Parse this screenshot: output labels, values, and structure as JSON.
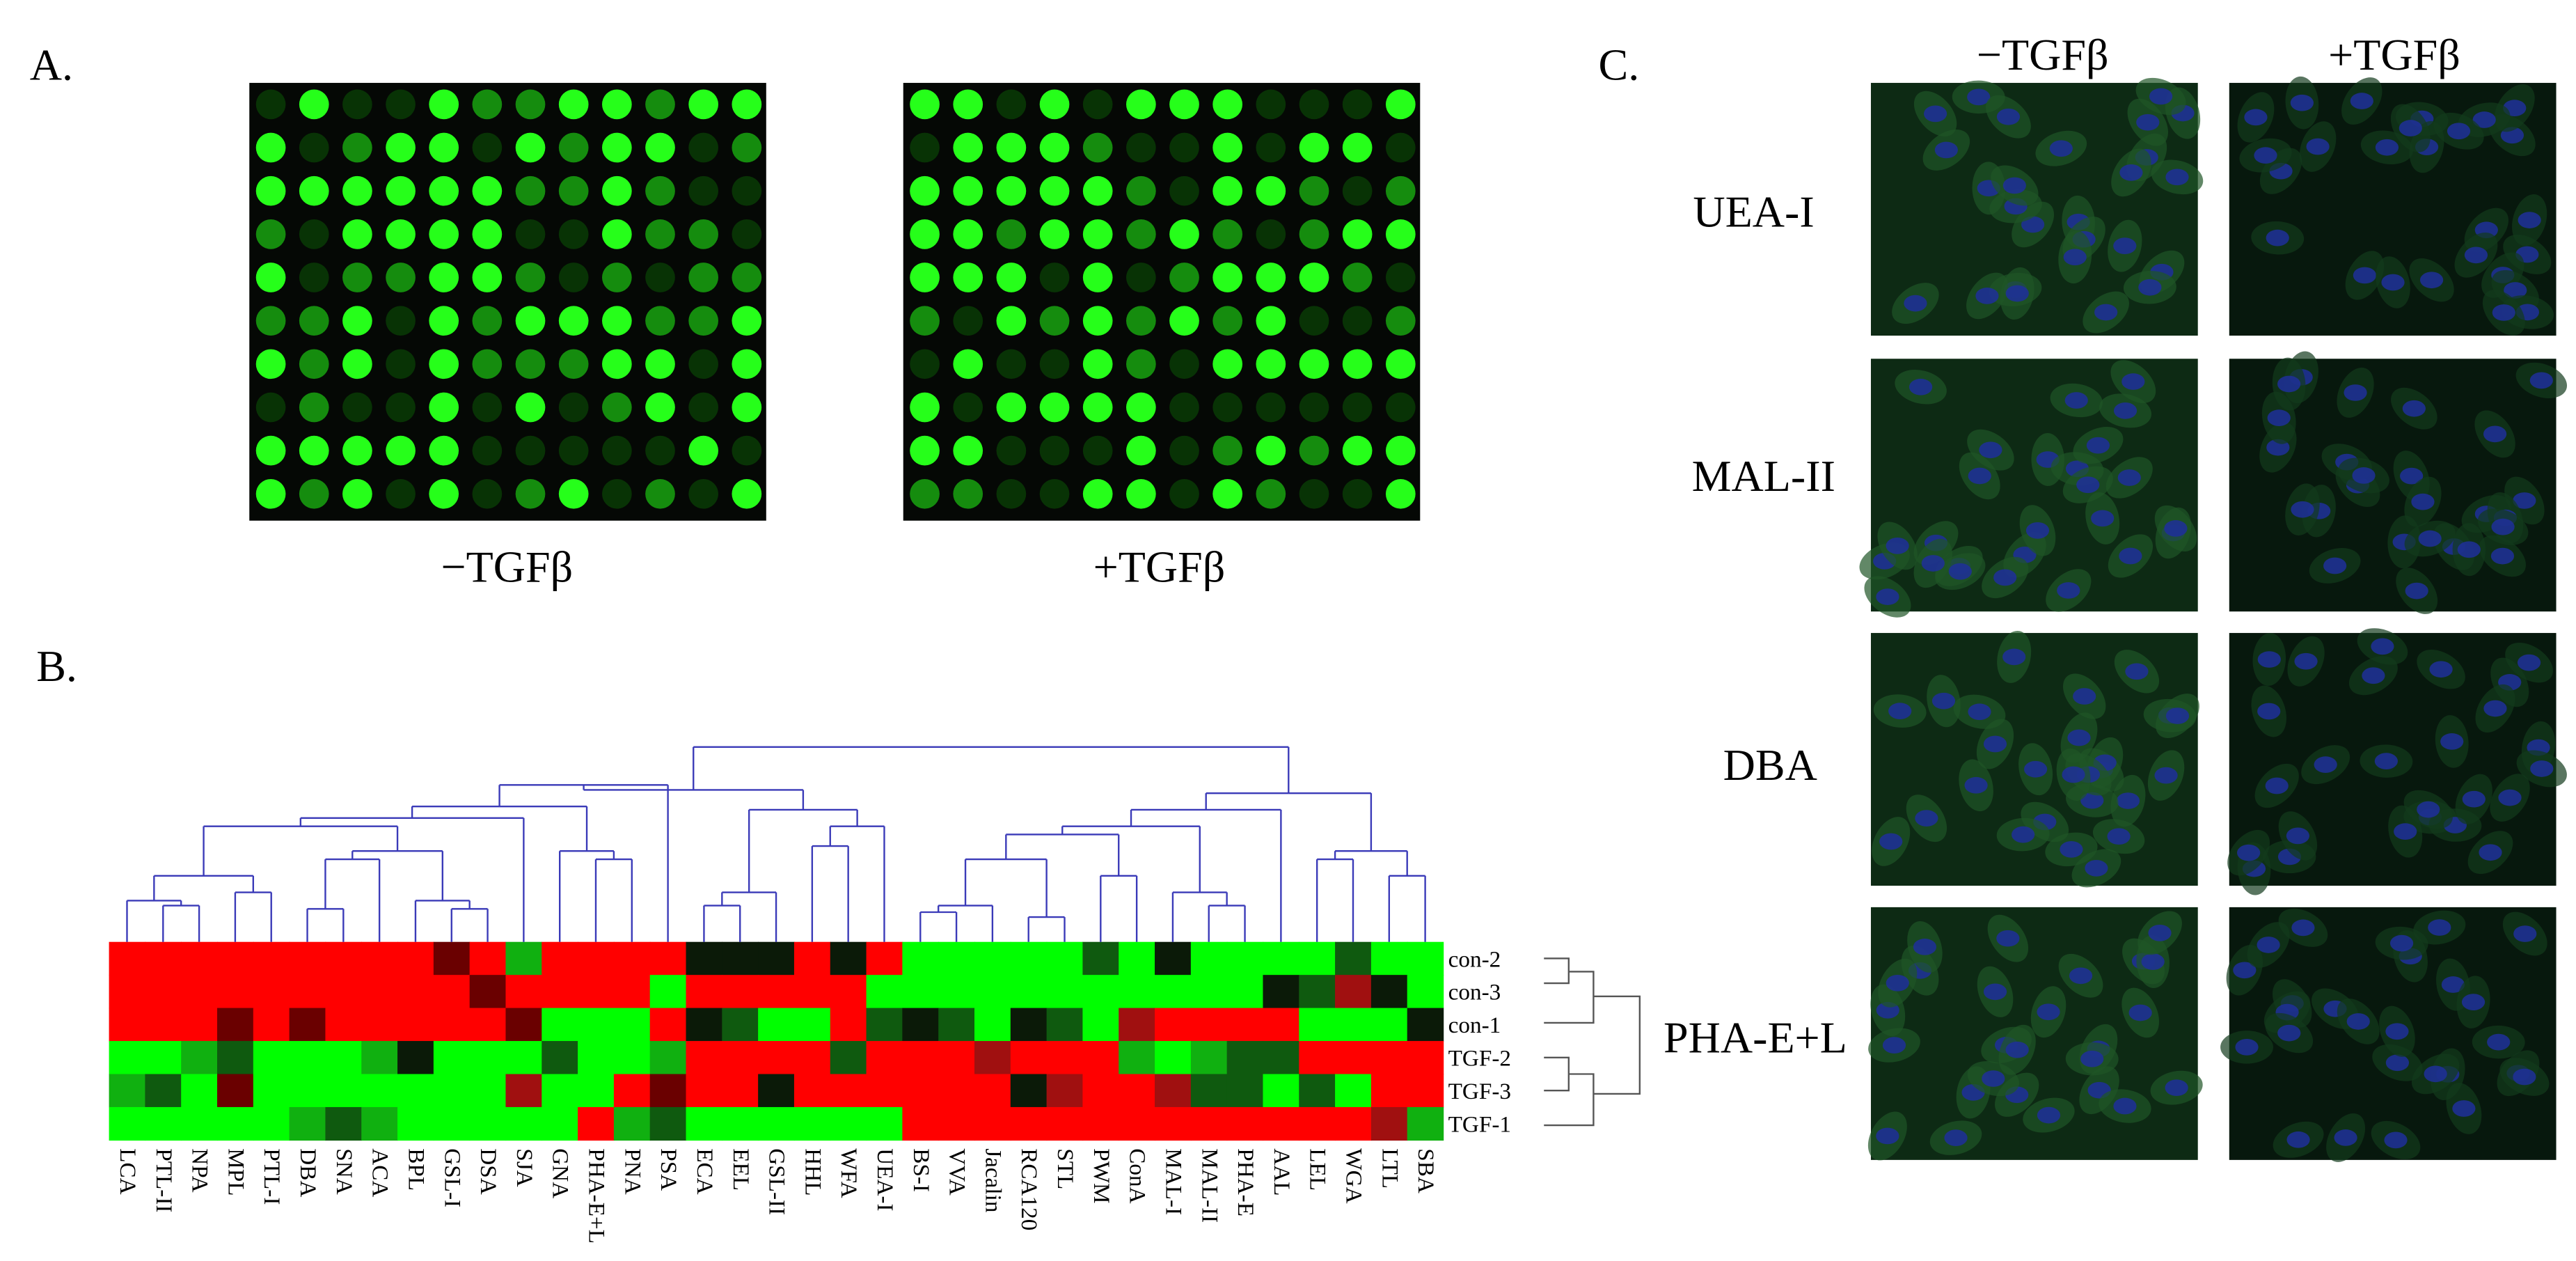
{
  "panel_a": {
    "label": "A.",
    "captions": [
      "−TGFβ",
      "+TGFβ"
    ]
  },
  "panel_b": {
    "label": "B.",
    "heatmap": {
      "columns": [
        "LCA",
        "PTL-II",
        "NPA",
        "MPL",
        "PTL-I",
        "DBA",
        "SNA",
        "ACA",
        "BPL",
        "GSL-I",
        "DSA",
        "SJA",
        "GNA",
        "PHA-E+L",
        "PNA",
        "PSA",
        "ECA",
        "EEL",
        "GSL-II",
        "HHL",
        "WFA",
        "UEA-I",
        "BS-I",
        "VVA",
        "Jacalin",
        "RCA120",
        "STL",
        "PWM",
        "ConA",
        "MAL-I",
        "MAL-II",
        "PHA-E",
        "AAL",
        "LEL",
        "WGA",
        "LTL",
        "SBA"
      ],
      "rows": [
        "con-2",
        "con-3",
        "con-1",
        "TGF-2",
        "TGF-3",
        "TGF-1"
      ],
      "colors": [
        [
          "#ff0000",
          "#ff0000",
          "#ff0000",
          "#ff0000",
          "#ff0000",
          "#ff0000",
          "#ff0000",
          "#ff0000",
          "#ff0000",
          "#6a0000",
          "#ff0000",
          "#10b010",
          "#ff0000",
          "#ff0000",
          "#ff0000",
          "#ff0000",
          "#0b1a08",
          "#0b1a08",
          "#0b1a08",
          "#ff0000",
          "#0b1a08",
          "#ff0000",
          "#00ff00",
          "#00ff00",
          "#00ff00",
          "#00ff00",
          "#00ff00",
          "#0f5a0f",
          "#00ff00",
          "#0b1a08",
          "#00ff00",
          "#00ff00",
          "#00ff00",
          "#00ff00",
          "#0f5a0f",
          "#00ff00",
          "#00ff00"
        ],
        [
          "#ff0000",
          "#ff0000",
          "#ff0000",
          "#ff0000",
          "#ff0000",
          "#ff0000",
          "#ff0000",
          "#ff0000",
          "#ff0000",
          "#ff0000",
          "#6a0000",
          "#ff0000",
          "#ff0000",
          "#ff0000",
          "#ff0000",
          "#00ff00",
          "#ff0000",
          "#ff0000",
          "#ff0000",
          "#ff0000",
          "#ff0000",
          "#00ff00",
          "#00ff00",
          "#00ff00",
          "#00ff00",
          "#00ff00",
          "#00ff00",
          "#00ff00",
          "#00ff00",
          "#00ff00",
          "#00ff00",
          "#00ff00",
          "#0b1a08",
          "#0f5a0f",
          "#a01010",
          "#0b1a08",
          "#00ff00"
        ],
        [
          "#ff0000",
          "#ff0000",
          "#ff0000",
          "#6a0000",
          "#ff0000",
          "#6a0000",
          "#ff0000",
          "#ff0000",
          "#ff0000",
          "#ff0000",
          "#ff0000",
          "#6a0000",
          "#00ff00",
          "#00ff00",
          "#00ff00",
          "#ff0000",
          "#0b1a08",
          "#0f5a0f",
          "#00ff00",
          "#00ff00",
          "#ff0000",
          "#0f5a0f",
          "#0b1a08",
          "#0f5a0f",
          "#00ff00",
          "#0b1a08",
          "#0f5a0f",
          "#00ff00",
          "#a01010",
          "#ff0000",
          "#ff0000",
          "#ff0000",
          "#ff0000",
          "#00ff00",
          "#00ff00",
          "#00ff00",
          "#0b1a08"
        ],
        [
          "#00ff00",
          "#00ff00",
          "#10b010",
          "#0f5a0f",
          "#00ff00",
          "#00ff00",
          "#00ff00",
          "#10b010",
          "#0b1a08",
          "#00ff00",
          "#00ff00",
          "#00ff00",
          "#0f5a0f",
          "#00ff00",
          "#00ff00",
          "#10b010",
          "#ff0000",
          "#ff0000",
          "#ff0000",
          "#ff0000",
          "#0f5a0f",
          "#ff0000",
          "#ff0000",
          "#ff0000",
          "#a01010",
          "#ff0000",
          "#ff0000",
          "#ff0000",
          "#10b010",
          "#00ff00",
          "#10b010",
          "#0f5a0f",
          "#0f5a0f",
          "#ff0000",
          "#ff0000",
          "#ff0000",
          "#ff0000"
        ],
        [
          "#10b010",
          "#0f5a0f",
          "#00ff00",
          "#6a0000",
          "#00ff00",
          "#00ff00",
          "#00ff00",
          "#00ff00",
          "#00ff00",
          "#00ff00",
          "#00ff00",
          "#a01010",
          "#00ff00",
          "#00ff00",
          "#ff0000",
          "#6a0000",
          "#ff0000",
          "#ff0000",
          "#0b1a08",
          "#ff0000",
          "#ff0000",
          "#ff0000",
          "#ff0000",
          "#ff0000",
          "#ff0000",
          "#0b1a08",
          "#a01010",
          "#ff0000",
          "#ff0000",
          "#a01010",
          "#0f5a0f",
          "#0f5a0f",
          "#00ff00",
          "#0f5a0f",
          "#00ff00",
          "#ff0000",
          "#ff0000"
        ],
        [
          "#00ff00",
          "#00ff00",
          "#00ff00",
          "#00ff00",
          "#00ff00",
          "#10b010",
          "#0f5a0f",
          "#10b010",
          "#00ff00",
          "#00ff00",
          "#00ff00",
          "#00ff00",
          "#00ff00",
          "#ff0000",
          "#10b010",
          "#0f5a0f",
          "#00ff00",
          "#00ff00",
          "#00ff00",
          "#00ff00",
          "#00ff00",
          "#00ff00",
          "#ff0000",
          "#ff0000",
          "#ff0000",
          "#ff0000",
          "#ff0000",
          "#ff0000",
          "#ff0000",
          "#ff0000",
          "#ff0000",
          "#ff0000",
          "#ff0000",
          "#ff0000",
          "#ff0000",
          "#a01010",
          "#10b010"
        ]
      ]
    }
  },
  "panel_c": {
    "label": "C.",
    "headers": [
      "−TGFβ",
      "+TGFβ"
    ],
    "rows": [
      "UEA-I",
      "MAL-II",
      "DBA",
      "PHA-E+L"
    ]
  }
}
